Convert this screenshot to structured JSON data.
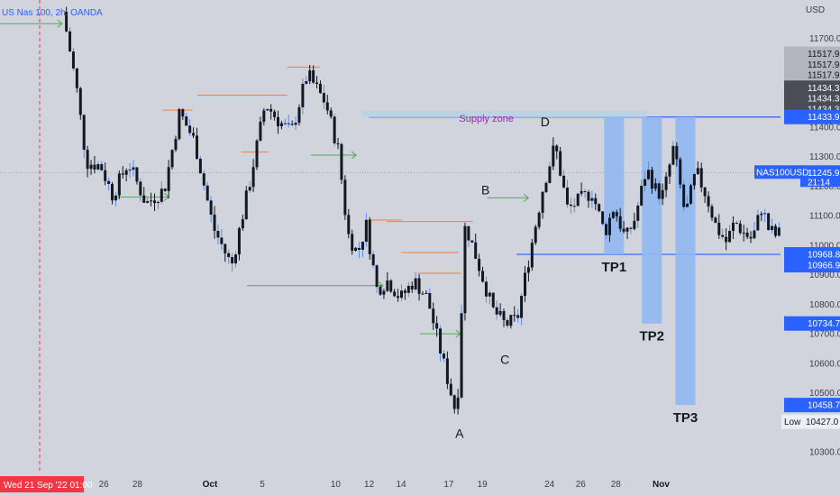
{
  "chart_data": {
    "type": "candlestick",
    "title": "US Nas 100, 2h, OANDA",
    "currency_label": "USD",
    "symbol_tag": "NAS100USD",
    "ylim": [
      10230,
      11830
    ],
    "y_ticks": [
      11700,
      11600,
      11500,
      11400,
      11300,
      11200,
      11100,
      11000,
      10900,
      10800,
      10700,
      10600,
      10500,
      10400,
      10300
    ],
    "y_tick_labels": [
      "11700.0",
      "11600.0",
      "11500.0",
      "11400.0",
      "11300.0",
      "11200.0",
      "11100.0",
      "11000.0",
      "10900.0",
      "10800.0",
      "10700.0",
      "10600.0",
      "10500.0",
      "10400.0",
      "10300.0"
    ],
    "x_ticks": [
      {
        "label": "26",
        "bold": false,
        "t": 0.133
      },
      {
        "label": "28",
        "bold": false,
        "t": 0.176
      },
      {
        "label": "Oct",
        "bold": true,
        "t": 0.269
      },
      {
        "label": "5",
        "bold": false,
        "t": 0.336
      },
      {
        "label": "10",
        "bold": false,
        "t": 0.43
      },
      {
        "label": "12",
        "bold": false,
        "t": 0.473
      },
      {
        "label": "14",
        "bold": false,
        "t": 0.514
      },
      {
        "label": "17",
        "bold": false,
        "t": 0.575
      },
      {
        "label": "19",
        "bold": false,
        "t": 0.618
      },
      {
        "label": "24",
        "bold": false,
        "t": 0.704
      },
      {
        "label": "26",
        "bold": false,
        "t": 0.744
      },
      {
        "label": "28",
        "bold": false,
        "t": 0.789
      },
      {
        "label": "Nov",
        "bold": true,
        "t": 0.847
      }
    ],
    "crosshair_date": "Wed 21 Sep '22  01:00",
    "current_price": "11245.9",
    "countdown": "21:14",
    "waypoints": [
      {
        "x": 0.079,
        "y": 11790
      },
      {
        "x": 0.095,
        "y": 11540
      },
      {
        "x": 0.107,
        "y": 11280
      },
      {
        "x": 0.124,
        "y": 11270
      },
      {
        "x": 0.138,
        "y": 11170
      },
      {
        "x": 0.157,
        "y": 11280
      },
      {
        "x": 0.178,
        "y": 11140
      },
      {
        "x": 0.2,
        "y": 11190
      },
      {
        "x": 0.218,
        "y": 11450
      },
      {
        "x": 0.236,
        "y": 11350
      },
      {
        "x": 0.258,
        "y": 11060
      },
      {
        "x": 0.28,
        "y": 10930
      },
      {
        "x": 0.302,
        "y": 11220
      },
      {
        "x": 0.32,
        "y": 11480
      },
      {
        "x": 0.336,
        "y": 11420
      },
      {
        "x": 0.351,
        "y": 11380
      },
      {
        "x": 0.37,
        "y": 11580
      },
      {
        "x": 0.392,
        "y": 11480
      },
      {
        "x": 0.407,
        "y": 11320
      },
      {
        "x": 0.418,
        "y": 11040
      },
      {
        "x": 0.43,
        "y": 10970
      },
      {
        "x": 0.44,
        "y": 11070
      },
      {
        "x": 0.453,
        "y": 10850
      },
      {
        "x": 0.466,
        "y": 10880
      },
      {
        "x": 0.481,
        "y": 10820
      },
      {
        "x": 0.497,
        "y": 10880
      },
      {
        "x": 0.513,
        "y": 10820
      },
      {
        "x": 0.548,
        "y": 10420
      },
      {
        "x": 0.558,
        "y": 11070
      },
      {
        "x": 0.571,
        "y": 10960
      },
      {
        "x": 0.591,
        "y": 10780
      },
      {
        "x": 0.606,
        "y": 10730
      },
      {
        "x": 0.62,
        "y": 10750
      },
      {
        "x": 0.632,
        "y": 10930
      },
      {
        "x": 0.651,
        "y": 11200
      },
      {
        "x": 0.665,
        "y": 11340
      },
      {
        "x": 0.68,
        "y": 11120
      },
      {
        "x": 0.693,
        "y": 11150
      },
      {
        "x": 0.709,
        "y": 11180
      },
      {
        "x": 0.724,
        "y": 11040
      },
      {
        "x": 0.735,
        "y": 11130
      },
      {
        "x": 0.749,
        "y": 11020
      },
      {
        "x": 0.76,
        "y": 11090
      },
      {
        "x": 0.774,
        "y": 11260
      },
      {
        "x": 0.786,
        "y": 11180
      },
      {
        "x": 0.794,
        "y": 11170
      },
      {
        "x": 0.806,
        "y": 11330
      },
      {
        "x": 0.82,
        "y": 11100
      },
      {
        "x": 0.833,
        "y": 11250
      },
      {
        "x": 0.846,
        "y": 11160
      },
      {
        "x": 0.857,
        "y": 11060
      },
      {
        "x": 0.869,
        "y": 11010
      },
      {
        "x": 0.879,
        "y": 11080
      },
      {
        "x": 0.89,
        "y": 11040
      },
      {
        "x": 0.9,
        "y": 11020
      },
      {
        "x": 0.912,
        "y": 11140
      },
      {
        "x": 0.917,
        "y": 11060
      },
      {
        "x": 0.929,
        "y": 11030
      },
      {
        "x": 0.941,
        "y": 11070
      },
      {
        "x": 0.948,
        "y": 11245
      }
    ],
    "wave_labels": [
      {
        "text": "A",
        "t": 0.547,
        "price": 10390
      },
      {
        "text": "B",
        "t": 0.578,
        "price": 11215
      },
      {
        "text": "C",
        "t": 0.601,
        "price": 10640
      },
      {
        "text": "D",
        "t": 0.649,
        "price": 11445
      }
    ],
    "supply_zone": {
      "label": "Supply zone",
      "t_start": 0.431,
      "t_end": 0.77,
      "price_top": 11455,
      "price_bottom": 11433
    },
    "support_line": {
      "t_start": 0.615,
      "price": 10968.8
    },
    "supply_line": {
      "t_start": 0.439,
      "price": 11433.9
    },
    "take_profits": [
      {
        "label": "TP1",
        "t": 0.731,
        "price": 10968.8
      },
      {
        "label": "TP2",
        "t": 0.776,
        "price": 10734.7
      },
      {
        "label": "TP3",
        "t": 0.816,
        "price": 10458.7
      }
    ],
    "horizontal_levels_green": [
      {
        "t1": 0.0,
        "t2": 0.074,
        "price": 11750
      },
      {
        "t1": 0.134,
        "t2": 0.201,
        "price": 11163
      },
      {
        "t1": 0.37,
        "t2": 0.424,
        "price": 11305
      },
      {
        "t1": 0.294,
        "t2": 0.456,
        "price": 10863
      },
      {
        "t1": 0.5,
        "t2": 0.548,
        "price": 10700
      },
      {
        "t1": 0.58,
        "t2": 0.629,
        "price": 11160
      }
    ],
    "horizontal_levels_orange": [
      {
        "t1": 0.194,
        "t2": 0.229,
        "price": 11457
      },
      {
        "t1": 0.235,
        "t2": 0.342,
        "price": 11508
      },
      {
        "t1": 0.287,
        "t2": 0.32,
        "price": 11315
      },
      {
        "t1": 0.342,
        "t2": 0.381,
        "price": 11603
      },
      {
        "t1": 0.461,
        "t2": 0.563,
        "price": 11080
      },
      {
        "t1": 0.478,
        "t2": 0.546,
        "price": 10975
      },
      {
        "t1": 0.497,
        "t2": 0.549,
        "price": 10905
      },
      {
        "t1": 0.438,
        "t2": 0.478,
        "price": 11085
      }
    ],
    "price_tags": [
      {
        "text": "11517.9",
        "price": 11648,
        "bg": "#b2b5be",
        "fg": "#131722"
      },
      {
        "text": "11517.9",
        "price": 11612,
        "bg": "#b2b5be",
        "fg": "#131722"
      },
      {
        "text": "11517.9",
        "price": 11576,
        "bg": "#b2b5be",
        "fg": "#131722"
      },
      {
        "text": "11434.3",
        "price": 11533,
        "bg": "#4a4d57",
        "fg": "#ffffff"
      },
      {
        "text": "11434.3",
        "price": 11497,
        "bg": "#4a4d57",
        "fg": "#ffffff"
      },
      {
        "text": "11434.3",
        "price": 11461,
        "bg": "#4a4d57",
        "fg": "#ffffff"
      },
      {
        "text": "11433.9",
        "price": 11433.9,
        "bg": "#2962ff",
        "fg": "#ffffff"
      },
      {
        "text": "10968.8",
        "price": 10968.8,
        "bg": "#2962ff",
        "fg": "#ffffff"
      },
      {
        "text": "10966.9",
        "price": 10932,
        "bg": "#2962ff",
        "fg": "#ffffff"
      },
      {
        "text": "10734.7",
        "price": 10734.7,
        "bg": "#2962ff",
        "fg": "#ffffff"
      },
      {
        "text": "10458.7",
        "price": 10458.7,
        "bg": "#2962ff",
        "fg": "#ffffff"
      }
    ],
    "low_label": "Low",
    "low_value": "10427.0",
    "low_price": 10402,
    "colors": {
      "candle": "#131722",
      "wick_light": "#5b8def",
      "blue": "#2962ff",
      "tp_fill": "#90b8f0",
      "zone_fill": "#b6d4e4",
      "green": "#4caf50",
      "orange": "#f57c3a",
      "crosshair": "#f23645"
    }
  }
}
